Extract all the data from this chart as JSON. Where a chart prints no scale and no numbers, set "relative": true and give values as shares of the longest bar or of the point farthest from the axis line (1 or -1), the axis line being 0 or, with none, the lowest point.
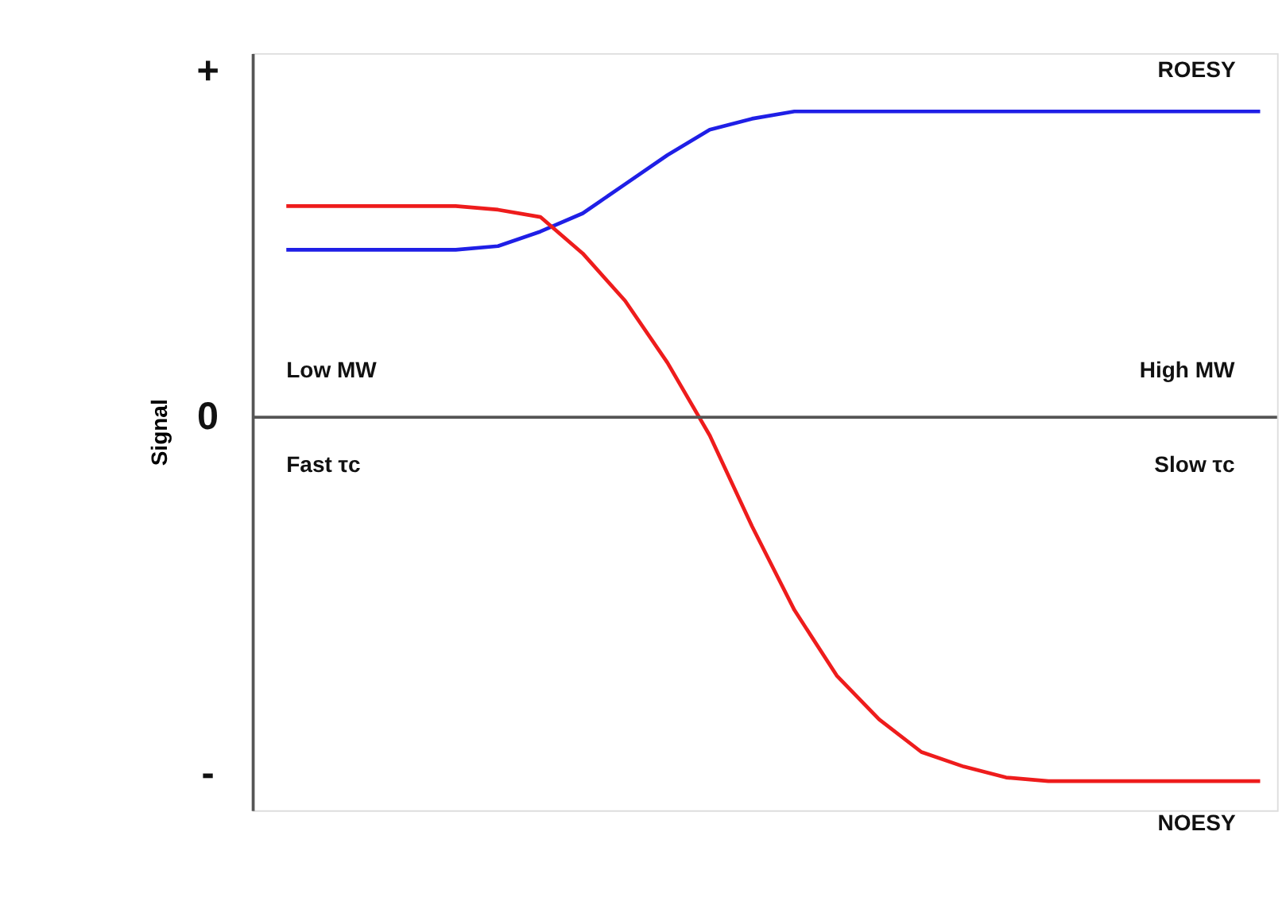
{
  "chart_data": {
    "type": "line",
    "relative": true,
    "ylabel": "Signal",
    "categories": [
      null,
      null,
      null,
      null,
      null,
      null,
      null,
      null,
      null,
      null,
      null,
      null,
      null,
      null,
      null,
      null,
      null,
      null,
      null,
      null,
      null,
      null,
      null,
      null
    ],
    "series": [
      {
        "name": "ROESY",
        "color": "#1f1fe6",
        "values": [
          0.46,
          0.46,
          0.46,
          0.46,
          0.46,
          0.47,
          0.51,
          0.56,
          0.64,
          0.72,
          0.79,
          0.82,
          0.84,
          0.84,
          0.84,
          0.84,
          0.84,
          0.84,
          0.84,
          0.84,
          0.84,
          0.84,
          0.84,
          0.84
        ]
      },
      {
        "name": "NOESY",
        "color": "#ee1c1c",
        "values": [
          0.58,
          0.58,
          0.58,
          0.58,
          0.58,
          0.57,
          0.55,
          0.45,
          0.32,
          0.15,
          -0.05,
          -0.3,
          -0.53,
          -0.71,
          -0.83,
          -0.92,
          -0.96,
          -0.99,
          -1,
          -1,
          -1,
          -1,
          -1,
          -1
        ]
      }
    ],
    "annotations": [
      "+",
      "0",
      "-",
      "Low MW",
      "High MW",
      "Fast τc",
      "Slow τc"
    ],
    "grid": false,
    "legend": false,
    "marker": "none",
    "line_style": "solid"
  }
}
